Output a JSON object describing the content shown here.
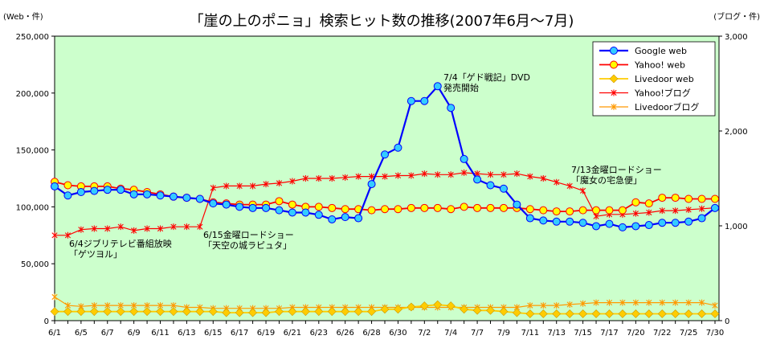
{
  "chart_data": {
    "type": "line",
    "title": "「崖の上のポニョ」検索ヒット数の推移(2007年6月〜7月)",
    "left_axis_unit": "(Web・件)",
    "right_axis_unit": "(ブログ・件)",
    "left_ylim": [
      0,
      250000
    ],
    "right_ylim": [
      0,
      3000
    ],
    "left_ticks": [
      "0",
      "50,000",
      "100,000",
      "150,000",
      "200,000",
      "250,000"
    ],
    "right_ticks": [
      "0",
      "1,000",
      "2,000",
      "3,000"
    ],
    "grid": false,
    "legend_position": "top-right",
    "x": [
      "6/1",
      "6/3",
      "6/5",
      "6/6",
      "6/7",
      "6/8",
      "6/9",
      "6/10",
      "6/11",
      "6/12",
      "6/13",
      "6/14",
      "6/15",
      "6/16",
      "6/17",
      "6/18",
      "6/19",
      "6/20",
      "6/21",
      "6/22",
      "6/23",
      "6/24",
      "6/26",
      "6/27",
      "6/28",
      "6/29",
      "6/30",
      "7/1",
      "7/2",
      "7/3",
      "7/4",
      "7/6",
      "7/7",
      "7/8",
      "7/9",
      "7/10",
      "7/11",
      "7/12",
      "7/13",
      "7/14",
      "7/15",
      "7/16",
      "7/17",
      "7/19",
      "7/20",
      "7/21",
      "7/22",
      "7/24",
      "7/25",
      "7/26",
      "7/30"
    ],
    "x_tick_labels": [
      "6/1",
      "6/5",
      "6/7",
      "6/9",
      "6/11",
      "6/13",
      "6/15",
      "6/17",
      "6/19",
      "6/21",
      "6/23",
      "6/26",
      "6/28",
      "6/30",
      "7/2",
      "7/4",
      "7/7",
      "7/9",
      "7/11",
      "7/13",
      "7/15",
      "7/17",
      "7/20",
      "7/22",
      "7/25",
      "7/30"
    ],
    "series": [
      {
        "name": "Google web",
        "axis": "left",
        "color": "#0000ff",
        "marker": "circle",
        "marker_fill": "#33ccff",
        "values": [
          118000,
          110000,
          113000,
          114000,
          115000,
          115000,
          111000,
          111000,
          110000,
          109000,
          108000,
          107000,
          103000,
          102000,
          100000,
          99000,
          99000,
          97000,
          95000,
          95000,
          93000,
          89000,
          91000,
          90000,
          120000,
          146000,
          152000,
          193000,
          193000,
          206000,
          187000,
          142000,
          124000,
          119000,
          116000,
          102000,
          90000,
          88000,
          87000,
          87000,
          86000,
          83000,
          85000,
          82000,
          83000,
          84000,
          86000,
          86000,
          87000,
          90000,
          99000
        ]
      },
      {
        "name": "Yahoo! web",
        "axis": "left",
        "color": "#ff0000",
        "marker": "circle",
        "marker_fill": "#ffff00",
        "values": [
          122000,
          119000,
          118000,
          118000,
          118000,
          116000,
          115000,
          113000,
          111000,
          109000,
          108000,
          107000,
          104000,
          103000,
          102000,
          102000,
          102000,
          105000,
          102000,
          100000,
          100000,
          99000,
          98000,
          98000,
          97000,
          98000,
          98000,
          99000,
          99000,
          99000,
          98000,
          100000,
          99000,
          99000,
          99000,
          99000,
          98000,
          97000,
          96000,
          96000,
          97000,
          97000,
          97000,
          97000,
          104000,
          103000,
          108000,
          108000,
          107000,
          107000,
          107000
        ]
      },
      {
        "name": "Livedoor web",
        "axis": "left",
        "color": "#ffcc00",
        "marker": "diamond",
        "marker_fill": "#ffcc00",
        "values": [
          8000,
          8000,
          8000,
          8000,
          8000,
          8000,
          8000,
          8000,
          8000,
          8000,
          8000,
          8000,
          8000,
          7000,
          7000,
          7000,
          7000,
          8000,
          8000,
          8000,
          8000,
          8000,
          8000,
          8000,
          8000,
          10000,
          10000,
          12000,
          13000,
          14000,
          13000,
          10000,
          9000,
          9000,
          8000,
          7000,
          6000,
          6000,
          6000,
          6000,
          6000,
          6000,
          6000,
          6000,
          6000,
          6000,
          6000,
          6000,
          6000,
          6000,
          6000
        ]
      },
      {
        "name": "Yahoo!ブログ",
        "axis": "right",
        "color": "#ff0000",
        "marker": "star",
        "marker_fill": "#ff0000",
        "values": [
          900,
          900,
          960,
          970,
          970,
          990,
          950,
          970,
          970,
          990,
          990,
          990,
          1400,
          1420,
          1420,
          1420,
          1440,
          1450,
          1470,
          1500,
          1500,
          1500,
          1510,
          1520,
          1520,
          1520,
          1530,
          1530,
          1550,
          1540,
          1540,
          1560,
          1550,
          1540,
          1540,
          1550,
          1520,
          1500,
          1460,
          1420,
          1370,
          1100,
          1120,
          1120,
          1130,
          1140,
          1160,
          1160,
          1170,
          1180,
          1190
        ]
      },
      {
        "name": "Livedoorブログ",
        "axis": "right",
        "color": "#ff9900",
        "marker": "star",
        "marker_fill": "#ff9900",
        "values": [
          250,
          160,
          150,
          160,
          160,
          160,
          160,
          160,
          160,
          160,
          140,
          140,
          130,
          130,
          130,
          130,
          130,
          130,
          140,
          140,
          140,
          140,
          140,
          140,
          140,
          140,
          140,
          140,
          140,
          140,
          140,
          140,
          140,
          140,
          140,
          140,
          160,
          160,
          160,
          170,
          180,
          190,
          190,
          190,
          190,
          190,
          190,
          190,
          190,
          190,
          160
        ]
      }
    ],
    "annotations": [
      {
        "at": "7/3",
        "text": [
          "7/4「ゲド戦記」DVD",
          "発売開始"
        ]
      },
      {
        "at": "7/14",
        "text": [
          "7/13金曜ロードショー",
          "「魔女の宅急便」"
        ]
      },
      {
        "at": "6/15",
        "text": [
          "6/15金曜ロードショー",
          "「天空の城ラピュタ」"
        ]
      },
      {
        "at": "6/3",
        "text": [
          "6/4ジブリテレビ番組放映",
          "「ゲツヨル」"
        ]
      }
    ]
  }
}
